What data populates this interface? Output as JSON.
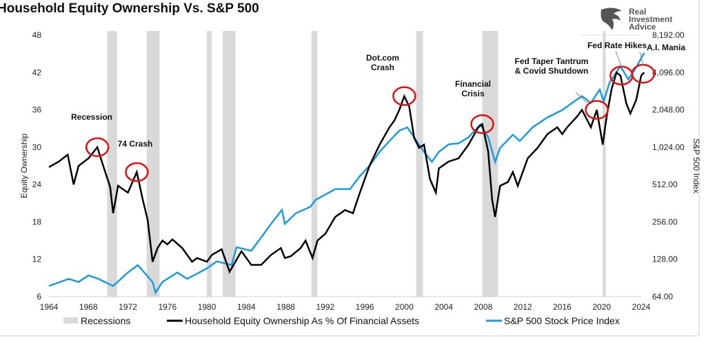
{
  "title": "Household Equity Ownership Vs. S&P 500",
  "logo": {
    "text": "Real Investment Advice",
    "lines": [
      "Real",
      "Investment",
      "Advice"
    ]
  },
  "chart_data": {
    "type": "line",
    "title": "Household Equity Ownership Vs. S&P 500",
    "xlabel": "",
    "ylabel": "Equity Ownership",
    "y2label": "S&P 500 Index",
    "xlim": [
      1964,
      2024
    ],
    "ylim": [
      6,
      48
    ],
    "y2lim": [
      64,
      8192
    ],
    "y2scale": "log2",
    "grid": false,
    "legend_placement": "bottom",
    "x_ticks": [
      "1964",
      "1968",
      "1972",
      "1976",
      "1980",
      "1984",
      "1988",
      "1992",
      "1996",
      "2000",
      "2004",
      "2008",
      "2012",
      "2016",
      "2020",
      "2024"
    ],
    "y_ticks": [
      "6",
      "12",
      "18",
      "24",
      "30",
      "36",
      "42",
      "48"
    ],
    "y2_ticks": [
      "64.00",
      "128.00",
      "256.00",
      "512.00",
      "1,024.00",
      "2,048.00",
      "4,096.00",
      "8,192.00"
    ],
    "colors": {
      "equity": "#000000",
      "sp500": "#1a9bdc",
      "recessions": "#d9d9d9",
      "circles": "#e01010"
    },
    "recessions": [
      [
        1969.9,
        1970.9
      ],
      [
        1973.9,
        1975.2
      ],
      [
        1980.0,
        1980.5
      ],
      [
        1981.6,
        1982.9
      ],
      [
        1990.6,
        1991.2
      ],
      [
        2001.2,
        2001.9
      ],
      [
        2007.9,
        2009.5
      ],
      [
        2020.1,
        2020.4
      ]
    ],
    "series": [
      {
        "name": "Household Equity Ownership As % Of Financial Assets",
        "axis": "left",
        "x": [
          1964,
          1965,
          1965.9,
          1966.5,
          1967,
          1968,
          1968.9,
          1969.5,
          1970.2,
          1970.5,
          1971,
          1972,
          1972.9,
          1973.5,
          1974,
          1974.5,
          1975,
          1975.5,
          1976,
          1976.5,
          1977.5,
          1978.5,
          1979,
          1980,
          1980.5,
          1981.5,
          1982.3,
          1982.7,
          1983.5,
          1984.5,
          1985.5,
          1986.5,
          1987.5,
          1987.9,
          1988.5,
          1989.5,
          1990,
          1990.7,
          1991.2,
          1992,
          1993,
          1994,
          1994.8,
          1995.5,
          1996.5,
          1997.5,
          1998.5,
          1999,
          1999.5,
          2000,
          2000.5,
          2001,
          2001.5,
          2002,
          2002.6,
          2003.2,
          2003.5,
          2004.5,
          2005.5,
          2006.5,
          2007.5,
          2007.9,
          2008.5,
          2008.9,
          2009.2,
          2009.7,
          2010.5,
          2011,
          2011.5,
          2012.5,
          2013.5,
          2014.5,
          2015.5,
          2016,
          2016.5,
          2017.5,
          2018,
          2018.9,
          2019.5,
          2020.1,
          2020.5,
          2021,
          2021.5,
          2021.9,
          2022.5,
          2022.9,
          2023.5,
          2024,
          2024.3
        ],
        "values": [
          26.8,
          27.7,
          28.8,
          24,
          27,
          28.2,
          30,
          27,
          23.6,
          19.4,
          23.8,
          22.7,
          26,
          21.6,
          18.3,
          11.6,
          13.8,
          15,
          14.4,
          15.2,
          13.8,
          11.6,
          12.2,
          11.6,
          12.7,
          13.6,
          10,
          11.1,
          13.3,
          11.1,
          11.1,
          12.7,
          13.8,
          12.2,
          12.5,
          13.8,
          15,
          12.2,
          15,
          16.1,
          18.8,
          19.9,
          19.4,
          22.7,
          27.1,
          30.4,
          33.2,
          34.3,
          36,
          38.2,
          36.5,
          31.5,
          29.9,
          30.4,
          24.9,
          22.7,
          26.6,
          27.7,
          28.2,
          30.4,
          33.2,
          33.7,
          29.3,
          21.6,
          18.8,
          23.8,
          24.4,
          26,
          23.8,
          28.2,
          29.9,
          32.1,
          33.2,
          32.1,
          33.2,
          34.9,
          36,
          33.2,
          36,
          30.4,
          34.9,
          39.3,
          42,
          41.5,
          37,
          35.4,
          37.6,
          41.5,
          42
        ]
      },
      {
        "name": "S&P 500 Stock Price Index",
        "axis": "right",
        "x": [
          1964,
          1966,
          1967,
          1968,
          1969,
          1970.5,
          1972,
          1973,
          1974.5,
          1974.8,
          1975.5,
          1977,
          1978,
          1980,
          1981,
          1982.5,
          1983,
          1984.5,
          1985.5,
          1986.5,
          1987.6,
          1987.9,
          1989,
          1990.5,
          1991,
          1993,
          1994.5,
          1995.5,
          1996.5,
          1997.5,
          1998.5,
          1999.5,
          2000.3,
          2001,
          2002,
          2002.8,
          2003.5,
          2004.5,
          2005.5,
          2006.5,
          2007.7,
          2008.5,
          2009.2,
          2009.7,
          2011,
          2011.7,
          2013,
          2014.5,
          2016,
          2017,
          2018,
          2018.9,
          2019.8,
          2020.2,
          2020.8,
          2021.9,
          2022.7,
          2023.5,
          2024.3
        ],
        "values": [
          78,
          89,
          84,
          95,
          89,
          78,
          100,
          115,
          84,
          69,
          84,
          100,
          89,
          108,
          123,
          115,
          160,
          150,
          192,
          247,
          320,
          247,
          300,
          340,
          385,
          470,
          470,
          600,
          730,
          940,
          1150,
          1390,
          1480,
          1230,
          940,
          780,
          940,
          1080,
          1100,
          1230,
          1560,
          1230,
          780,
          1010,
          1290,
          1150,
          1480,
          1780,
          2040,
          2330,
          2640,
          2330,
          2980,
          2400,
          3400,
          4600,
          3600,
          4500,
          5900
        ]
      }
    ],
    "legend": [
      "Recessions",
      "Household Equity Ownership As % Of Financial Assets",
      "S&P 500 Stock Price Index"
    ],
    "annotations": [
      {
        "text": "Recession",
        "x": 1968.9,
        "y": 30
      },
      {
        "text": "74 Crash",
        "x": 1972.9,
        "y": 26
      },
      {
        "text": "Dot.com Crash",
        "lines": [
          "Dot.com",
          "Crash"
        ],
        "x": 2000,
        "y": 38.2
      },
      {
        "text": "Financial Crisis",
        "lines": [
          "Financial",
          "Crisis"
        ],
        "x": 2007.9,
        "y": 33.7
      },
      {
        "text": "Fed Taper Tantrum & Covid Shutdown",
        "lines": [
          "Fed Taper Tantrum",
          "& Covid Shutdown"
        ],
        "x": 2019.5,
        "y": 36
      },
      {
        "text": "Fed Rate Hikes",
        "x": 2022,
        "y": 41.5
      },
      {
        "text": "A.I. Mania",
        "x": 2024.2,
        "y": 41.8
      }
    ]
  }
}
